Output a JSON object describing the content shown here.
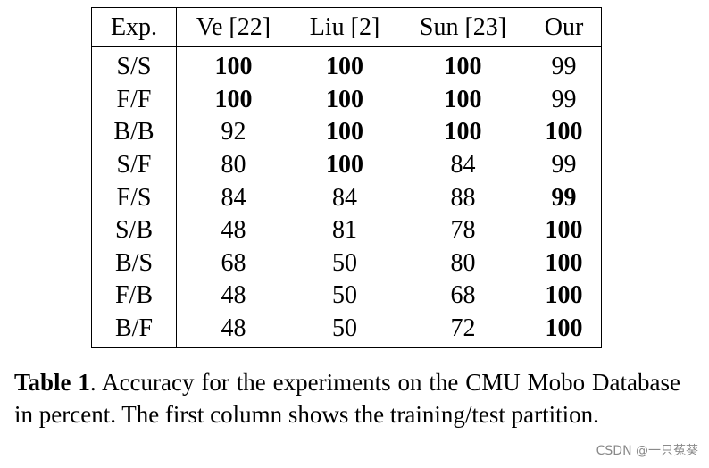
{
  "table": {
    "headers": [
      "Exp.",
      "Ve [22]",
      "Liu [2]",
      "Sun [23]",
      "Our"
    ],
    "rows": [
      {
        "exp": "S/S",
        "cells": [
          {
            "v": "100",
            "b": true
          },
          {
            "v": "100",
            "b": true
          },
          {
            "v": "100",
            "b": true
          },
          {
            "v": "99",
            "b": false
          }
        ]
      },
      {
        "exp": "F/F",
        "cells": [
          {
            "v": "100",
            "b": true
          },
          {
            "v": "100",
            "b": true
          },
          {
            "v": "100",
            "b": true
          },
          {
            "v": "99",
            "b": false
          }
        ]
      },
      {
        "exp": "B/B",
        "cells": [
          {
            "v": "92",
            "b": false
          },
          {
            "v": "100",
            "b": true
          },
          {
            "v": "100",
            "b": true
          },
          {
            "v": "100",
            "b": true
          }
        ]
      },
      {
        "exp": "S/F",
        "cells": [
          {
            "v": "80",
            "b": false
          },
          {
            "v": "100",
            "b": true
          },
          {
            "v": "84",
            "b": false
          },
          {
            "v": "99",
            "b": false
          }
        ]
      },
      {
        "exp": "F/S",
        "cells": [
          {
            "v": "84",
            "b": false
          },
          {
            "v": "84",
            "b": false
          },
          {
            "v": "88",
            "b": false
          },
          {
            "v": "99",
            "b": true
          }
        ]
      },
      {
        "exp": "S/B",
        "cells": [
          {
            "v": "48",
            "b": false
          },
          {
            "v": "81",
            "b": false
          },
          {
            "v": "78",
            "b": false
          },
          {
            "v": "100",
            "b": true
          }
        ]
      },
      {
        "exp": "B/S",
        "cells": [
          {
            "v": "68",
            "b": false
          },
          {
            "v": "50",
            "b": false
          },
          {
            "v": "80",
            "b": false
          },
          {
            "v": "100",
            "b": true
          }
        ]
      },
      {
        "exp": "F/B",
        "cells": [
          {
            "v": "48",
            "b": false
          },
          {
            "v": "50",
            "b": false
          },
          {
            "v": "68",
            "b": false
          },
          {
            "v": "100",
            "b": true
          }
        ]
      },
      {
        "exp": "B/F",
        "cells": [
          {
            "v": "48",
            "b": false
          },
          {
            "v": "50",
            "b": false
          },
          {
            "v": "72",
            "b": false
          },
          {
            "v": "100",
            "b": true
          }
        ]
      }
    ]
  },
  "caption": {
    "label": "Table 1",
    "text": ".  Accuracy for the experiments on the CMU Mobo Database in percent. The first column shows the training/test partition."
  },
  "watermark": "CSDN @一只菟葵"
}
